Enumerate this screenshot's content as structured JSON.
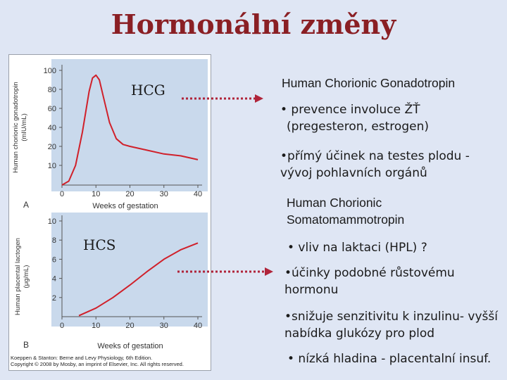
{
  "slide": {
    "title": "Hormonální změny"
  },
  "figure": {
    "panel_a": {
      "label": "A",
      "ylabel_line1": "Human chorionic gonadotropin",
      "ylabel_line2": "(mIU/mL)",
      "xlabel": "Weeks of gestation",
      "yticks": [
        "100",
        "80",
        "60",
        "40",
        "20",
        "10"
      ],
      "xticks": [
        "0",
        "10",
        "20",
        "30",
        "40"
      ]
    },
    "panel_b": {
      "label": "B",
      "ylabel_line1": "Human placental lactogen",
      "ylabel_line2": "(μg/mL)",
      "xlabel": "Weeks of gestation",
      "yticks": [
        "10",
        "8",
        "6",
        "4",
        "2"
      ],
      "xticks": [
        "0",
        "10",
        "20",
        "30",
        "40"
      ]
    },
    "credit_line1": "Koeppen & Stanton: Berne and Levy Physiology, 6th Edition.",
    "credit_line2": "Copyright © 2008 by Mosby, an imprint of Elsevier, Inc. All rights reserved."
  },
  "annotations": {
    "hcg": "HCG",
    "hcs": "HCS"
  },
  "right": {
    "hcg_heading": "Human Chorionic Gonadotropin",
    "hcg_b1_line1": "• prevence involuce ŽŤ",
    "hcg_b1_line2": "(pregesteron, estrogen)",
    "hcg_b2_line1": "•přímý účinek na testes plodu -",
    "hcg_b2_line2": "vývoj pohlavních orgánů",
    "hcs_heading_line1": "Human Chorionic",
    "hcs_heading_line2": "Somatomammotropin",
    "hcs_b1": "• vliv na laktaci (HPL) ?",
    "hcs_b2_line1": "•účinky podobné růstovému",
    "hcs_b2_line2": "hormonu",
    "hcs_b3_line1": "•snižuje senzitivitu k inzulinu- vyšší",
    "hcs_b3_line2": "nabídka glukózy pro plod",
    "hcs_b4": "• nízká hladina - placentalní insuf."
  },
  "colors": {
    "title": "#8a1f24",
    "curve": "#d0202a",
    "panel": "#c9d9ec",
    "arrow": "#b0243a"
  },
  "chart_data": [
    {
      "type": "line",
      "xlabel": "Weeks of gestation",
      "ylabel": "Human chorionic gonadotropin (mIU/mL)",
      "ylim": [
        0,
        100
      ],
      "xlim": [
        0,
        40
      ],
      "x": [
        0,
        2,
        4,
        6,
        8,
        9,
        10,
        11,
        12,
        14,
        16,
        18,
        20,
        25,
        30,
        35,
        40
      ],
      "values": [
        0,
        2,
        10,
        35,
        78,
        92,
        95,
        90,
        75,
        45,
        28,
        22,
        20,
        18,
        16,
        15,
        13
      ]
    },
    {
      "type": "line",
      "xlabel": "Weeks of gestation",
      "ylabel": "Human placental lactogen (μg/mL)",
      "ylim": [
        0,
        10
      ],
      "xlim": [
        0,
        40
      ],
      "x": [
        5,
        10,
        15,
        20,
        25,
        30,
        35,
        40
      ],
      "values": [
        0.1,
        0.9,
        2.0,
        3.3,
        4.7,
        6.0,
        7.0,
        7.7
      ]
    }
  ]
}
